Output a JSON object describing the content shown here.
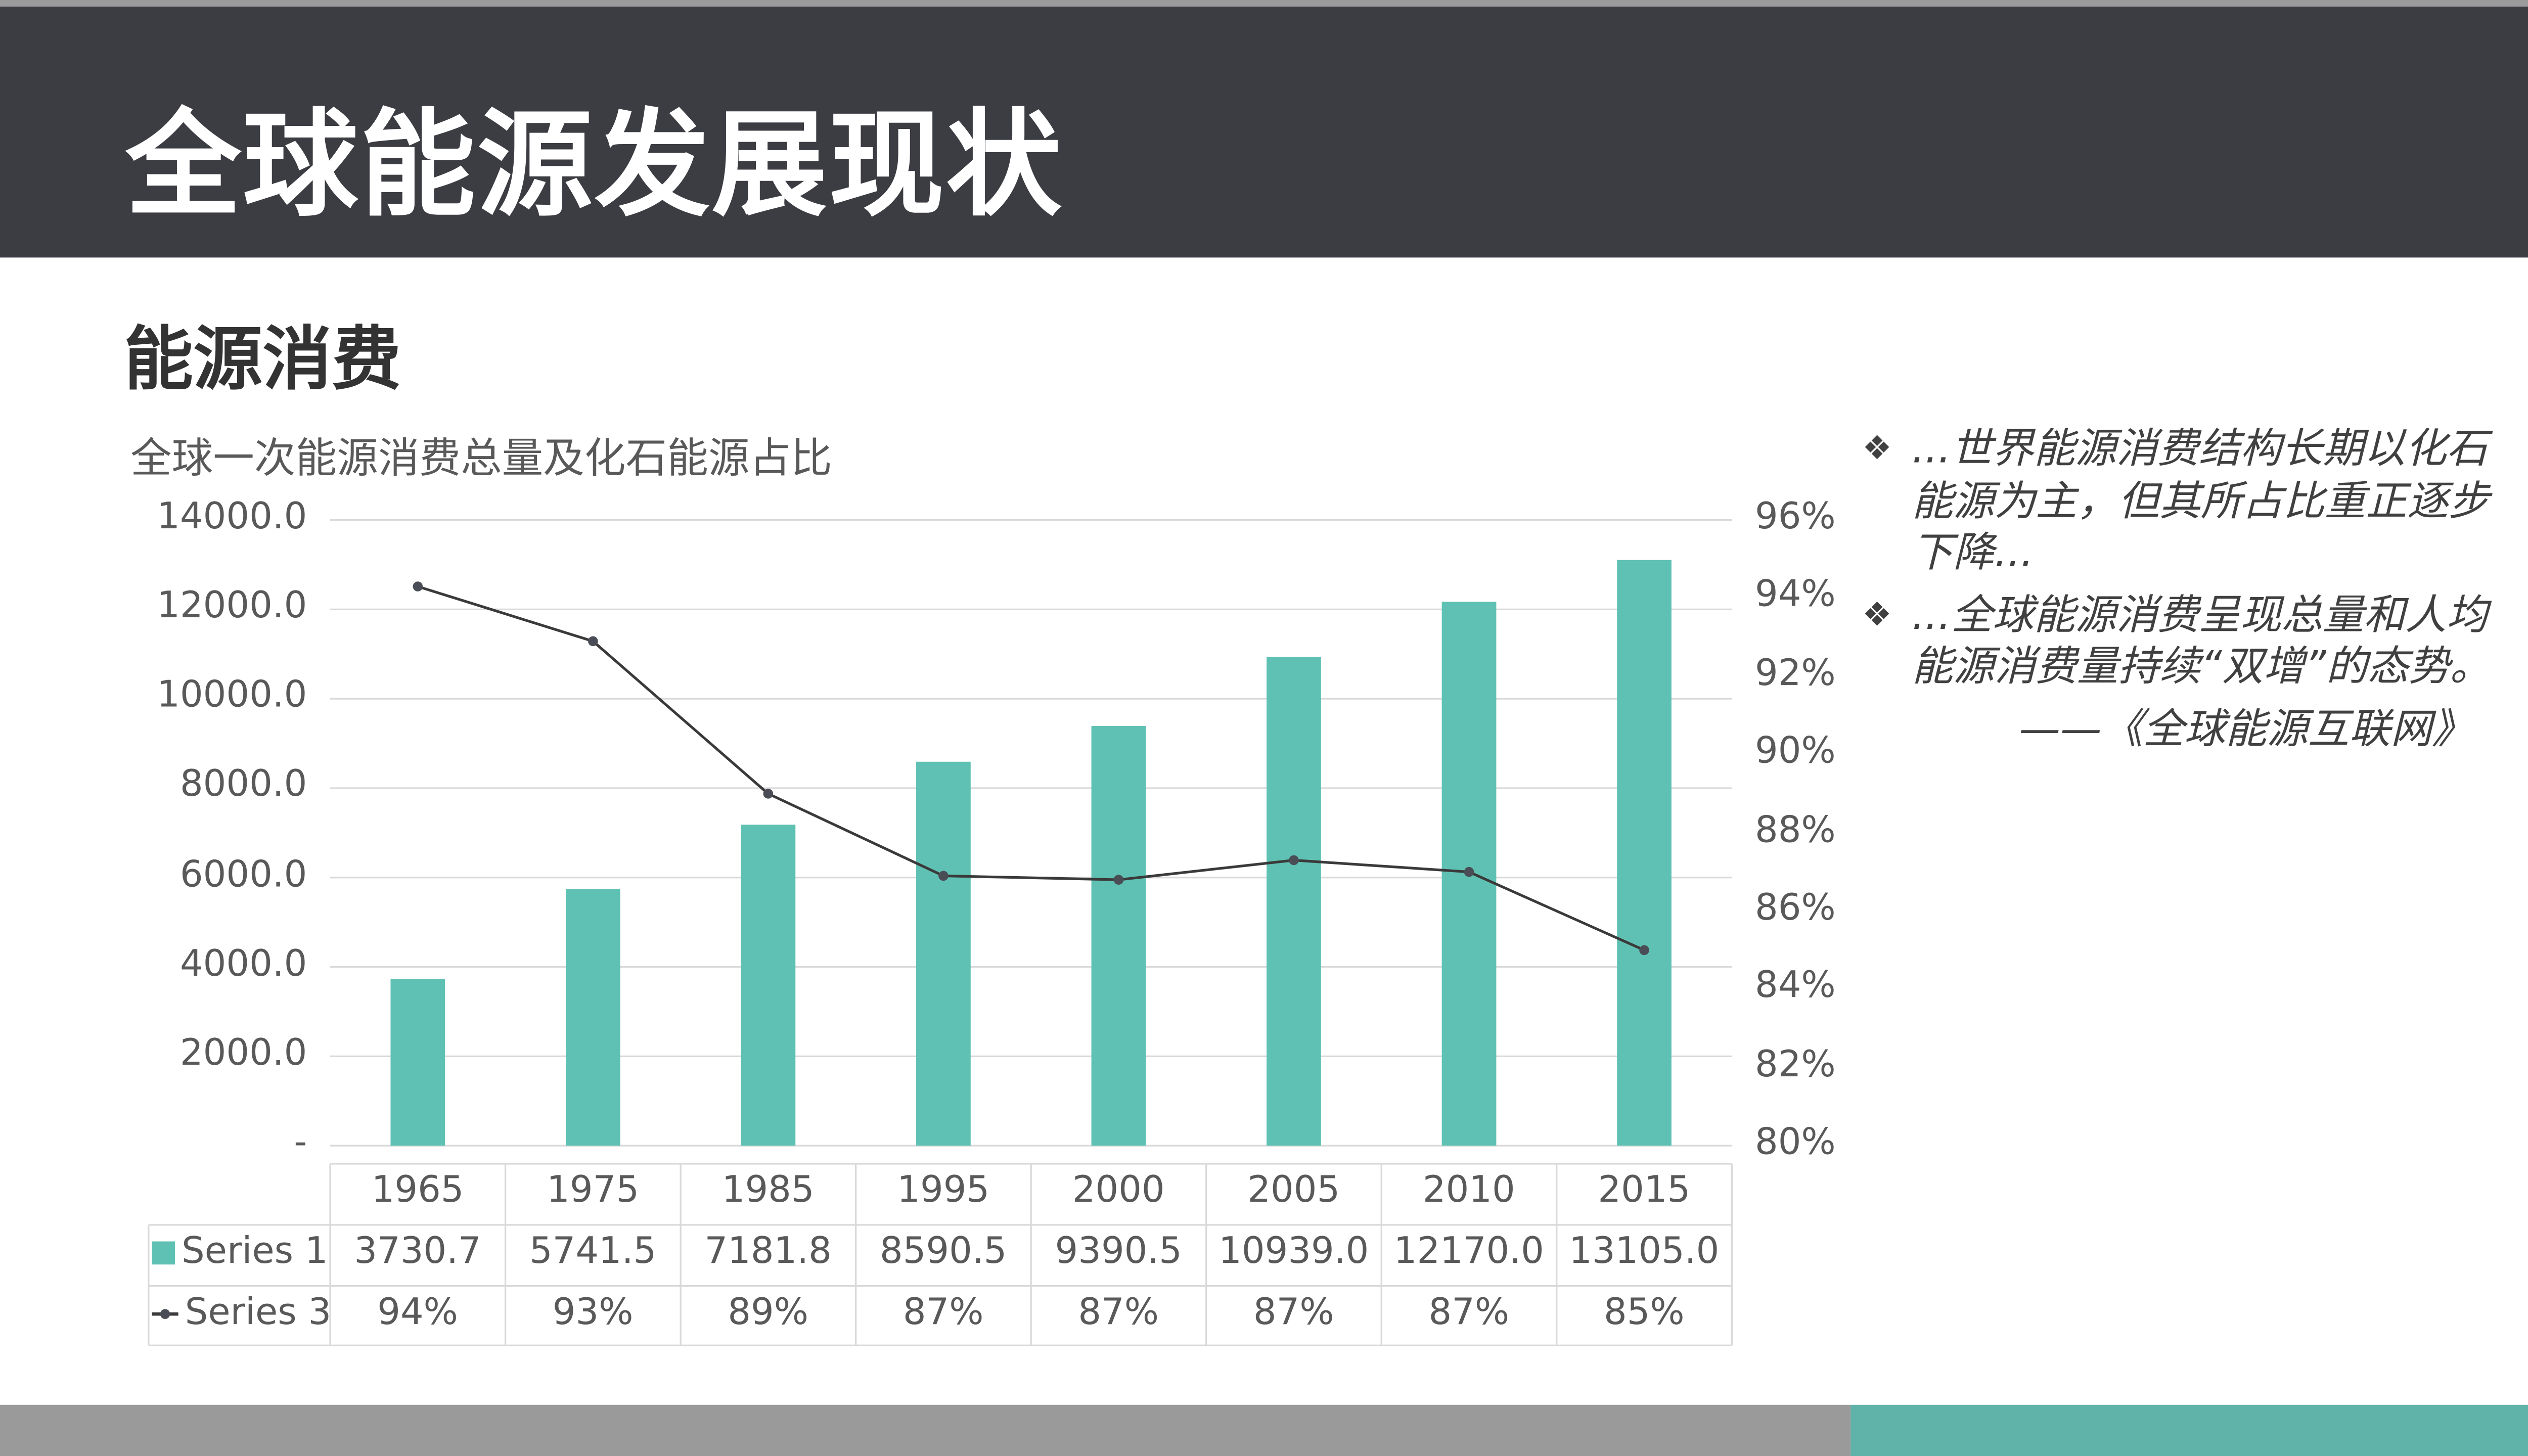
{
  "header": {
    "title": "全球能源发展现状"
  },
  "section": {
    "subtitle": "能源消费"
  },
  "chart_data": {
    "type": "bar+line",
    "title": "全球一次能源消费总量及化石能源占比",
    "categories": [
      "1965",
      "1975",
      "1985",
      "1995",
      "2000",
      "2005",
      "2010",
      "2015"
    ],
    "series": [
      {
        "name": "Series 1",
        "type": "bar",
        "axis": "left",
        "color": "#5fc1b3",
        "values": [
          3730.7,
          5741.5,
          7181.8,
          8590.5,
          9390.5,
          10939.0,
          12170.0,
          13105.0
        ],
        "labels": [
          "3730.7",
          "5741.5",
          "7181.8",
          "8590.5",
          "9390.5",
          "10939.0",
          "12170.0",
          "13105.0"
        ]
      },
      {
        "name": "Series 3",
        "type": "line",
        "axis": "right",
        "color": "#3a3a3a",
        "values": [
          94.3,
          92.9,
          89.0,
          86.9,
          86.8,
          87.3,
          87.0,
          85.0
        ],
        "labels": [
          "94%",
          "93%",
          "89%",
          "87%",
          "87%",
          "87%",
          "87%",
          "85%"
        ]
      }
    ],
    "y_left": {
      "ylim": [
        0,
        14000
      ],
      "ticks": [
        "-",
        "2000.0",
        "4000.0",
        "6000.0",
        "8000.0",
        "10000.0",
        "12000.0",
        "14000.0"
      ]
    },
    "y_right": {
      "ylim": [
        80,
        96
      ],
      "ticks": [
        "80%",
        "82%",
        "84%",
        "86%",
        "88%",
        "90%",
        "92%",
        "94%",
        "96%"
      ]
    },
    "grid": true,
    "data_table": true
  },
  "notes": {
    "items": [
      {
        "bullet": "❖",
        "text": "...世界能源消费结构长期以化石能源为主，但其所占比重正逐步下降..."
      },
      {
        "bullet": "❖",
        "text": "...全球能源消费呈现总量和人均能源消费量持续“双增”的态势。"
      }
    ],
    "source": "——《全球能源互联网》"
  },
  "colors": {
    "header_bg": "#3c3d42",
    "bar": "#5fc1b3",
    "line": "#3a3a3a",
    "band_gray": "#9a9a9a",
    "band_teal": "#5fb3a8"
  }
}
